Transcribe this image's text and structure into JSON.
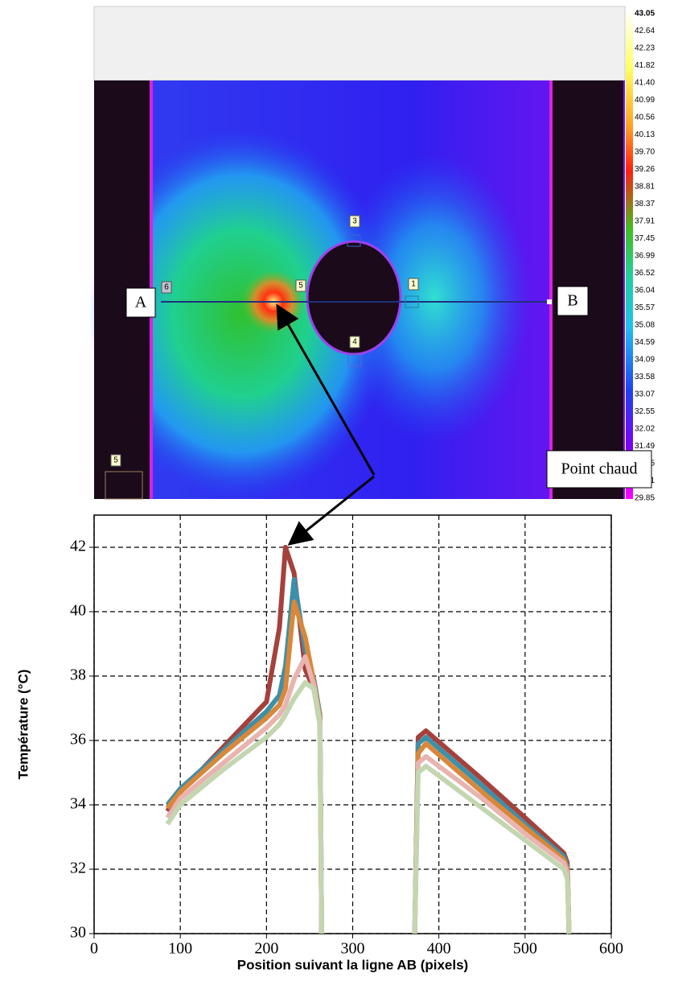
{
  "thermal_image": {
    "point_a": "A",
    "point_b": "B",
    "hot_spot": "Point chaud",
    "box_labels": [
      "6",
      "5",
      "3",
      "1",
      "4",
      "5"
    ],
    "colorbar_labels": [
      "43.05",
      "42.64",
      "42.23",
      "41.82",
      "41.40",
      "40.99",
      "40.56",
      "40.13",
      "39.70",
      "39.26",
      "38.81",
      "38.37",
      "37.91",
      "37.45",
      "36.99",
      "36.52",
      "36.04",
      "35.57",
      "35.08",
      "34.59",
      "34.09",
      "33.58",
      "33.07",
      "32.55",
      "32.02",
      "31.49",
      "30.95",
      "30.41",
      "29.85"
    ]
  },
  "chart_data": {
    "type": "line",
    "x_label": "Position suivant la ligne AB (pixels)",
    "y_label": "Température (°C)",
    "x": [
      85,
      100,
      150,
      200,
      215,
      222,
      232,
      245,
      255,
      262,
      264,
      300,
      372,
      376,
      385,
      450,
      500,
      545,
      549,
      551
    ],
    "series": [
      {
        "color": "#a5413c",
        "values": [
          33.8,
          34.4,
          35.8,
          37.2,
          39.5,
          42.0,
          41.2,
          38.2,
          37.6,
          36.5,
          30,
          null,
          30,
          36.1,
          36.3,
          34.8,
          33.6,
          32.5,
          32.2,
          30
        ]
      },
      {
        "color": "#3e8fa8",
        "values": [
          34.0,
          34.5,
          35.7,
          36.9,
          37.4,
          38.3,
          41.0,
          38.8,
          37.9,
          36.8,
          30,
          null,
          30,
          35.9,
          36.1,
          34.6,
          33.4,
          32.4,
          32.1,
          30
        ]
      },
      {
        "color": "#d9873a",
        "values": [
          33.9,
          34.4,
          35.6,
          36.7,
          37.1,
          37.6,
          40.3,
          39.2,
          37.8,
          36.7,
          30,
          null,
          30,
          35.6,
          35.9,
          34.4,
          33.3,
          32.3,
          32.0,
          30
        ]
      },
      {
        "color": "#e8b4b0",
        "values": [
          33.6,
          34.2,
          35.3,
          36.4,
          36.8,
          37.1,
          37.9,
          38.6,
          37.7,
          36.6,
          30,
          null,
          30,
          35.3,
          35.5,
          34.2,
          33.1,
          32.2,
          31.9,
          30
        ]
      },
      {
        "color": "#c3d6b0",
        "values": [
          33.4,
          34.0,
          35.1,
          36.1,
          36.5,
          36.8,
          37.3,
          37.8,
          37.6,
          36.5,
          30,
          null,
          30,
          35.0,
          35.2,
          33.9,
          32.9,
          32.0,
          31.7,
          30
        ]
      }
    ],
    "xlim": [
      0,
      600
    ],
    "xticks": [
      0,
      100,
      200,
      300,
      400,
      500,
      600
    ],
    "ylim": [
      30,
      43
    ],
    "yticks": [
      30,
      32,
      34,
      36,
      38,
      40,
      42
    ],
    "grid": true
  }
}
